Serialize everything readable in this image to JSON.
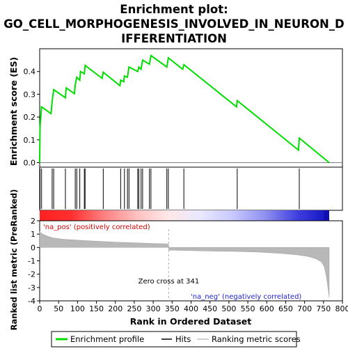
{
  "chart_data": {
    "type": "line",
    "title_line1": "Enrichment plot:",
    "title_line2": "GO_CELL_MORPHOGENESIS_INVOLVED_IN_NEURON_D",
    "title_line3": "IFFERENTIATION",
    "top_panel": {
      "ylabel": "Enrichment score (ES)",
      "ylim": [
        -0.02,
        0.5
      ],
      "yticks": [
        "0.0",
        "0.1",
        "0.2",
        "0.3",
        "0.4"
      ],
      "ytick_values": [
        0.0,
        0.1,
        0.2,
        0.3,
        0.4
      ],
      "series_name": "Enrichment profile",
      "line_color": "#00dd00",
      "points": [
        [
          0,
          0.0
        ],
        [
          1,
          0.155
        ],
        [
          5,
          0.245
        ],
        [
          30,
          0.215
        ],
        [
          33,
          0.268
        ],
        [
          37,
          0.32
        ],
        [
          68,
          0.285
        ],
        [
          70,
          0.328
        ],
        [
          92,
          0.303
        ],
        [
          94,
          0.342
        ],
        [
          98,
          0.375
        ],
        [
          106,
          0.362
        ],
        [
          108,
          0.4
        ],
        [
          118,
          0.39
        ],
        [
          120,
          0.427
        ],
        [
          165,
          0.37
        ],
        [
          168,
          0.397
        ],
        [
          212,
          0.338
        ],
        [
          214,
          0.362
        ],
        [
          222,
          0.355
        ],
        [
          224,
          0.38
        ],
        [
          232,
          0.375
        ],
        [
          236,
          0.42
        ],
        [
          259,
          0.4
        ],
        [
          262,
          0.42
        ],
        [
          268,
          0.41
        ],
        [
          272,
          0.45
        ],
        [
          290,
          0.432
        ],
        [
          294,
          0.47
        ],
        [
          336,
          0.42
        ],
        [
          340,
          0.46
        ],
        [
          378,
          0.41
        ],
        [
          381,
          0.43
        ],
        [
          520,
          0.245
        ],
        [
          522,
          0.272
        ],
        [
          684,
          0.055
        ],
        [
          686,
          0.108
        ],
        [
          765,
          0.0
        ]
      ]
    },
    "hits": {
      "series_name": "Hits",
      "positions": [
        1,
        5,
        33,
        37,
        68,
        94,
        98,
        106,
        118,
        120,
        168,
        214,
        224,
        232,
        236,
        259,
        262,
        268,
        272,
        290,
        294,
        336,
        340,
        381,
        522,
        686
      ]
    },
    "color_bar": {
      "stops": [
        "#ff2020",
        "#ff3030",
        "#ff8080",
        "#ffbfbf",
        "#ffe8e8",
        "#e8e8ff",
        "#c8c8ff",
        "#9090f0",
        "#4040e0",
        "#1010c0"
      ],
      "dark_end_start": 752
    },
    "bottom_panel": {
      "ylabel": "Ranked list metric (PreRanked)",
      "xlabel": "Rank in Ordered Dataset",
      "ylim": [
        -4,
        2
      ],
      "yticks": [
        "2",
        "1",
        "0",
        "-1",
        "-2",
        "-3",
        "-4"
      ],
      "ytick_values": [
        2,
        1,
        0,
        -1,
        -2,
        -3,
        -4
      ],
      "series_name": "Ranking metric scores",
      "metric_points": [
        [
          0,
          1.2
        ],
        [
          3,
          1.1
        ],
        [
          10,
          0.98
        ],
        [
          20,
          0.85
        ],
        [
          35,
          0.72
        ],
        [
          60,
          0.62
        ],
        [
          100,
          0.55
        ],
        [
          150,
          0.47
        ],
        [
          200,
          0.4
        ],
        [
          250,
          0.35
        ],
        [
          300,
          0.3
        ],
        [
          340,
          0.27
        ],
        [
          341,
          -0.2
        ],
        [
          380,
          -0.22
        ],
        [
          450,
          -0.27
        ],
        [
          520,
          -0.3
        ],
        [
          580,
          -0.35
        ],
        [
          640,
          -0.45
        ],
        [
          680,
          -0.55
        ],
        [
          710,
          -0.68
        ],
        [
          730,
          -0.85
        ],
        [
          745,
          -1.1
        ],
        [
          752,
          -1.45
        ],
        [
          757,
          -2.1
        ],
        [
          760,
          -2.7
        ],
        [
          763,
          -3.3
        ],
        [
          765,
          -3.75
        ]
      ],
      "pos_label": "'na_pos' (positively correlated)",
      "neg_label": "'na_neg' (negatively correlated)",
      "zero_cross_label": "Zero cross at 341",
      "zero_cross": 341
    },
    "xlim": [
      0,
      800
    ],
    "xticks": [
      "0",
      "50",
      "100",
      "150",
      "200",
      "250",
      "300",
      "350",
      "400",
      "450",
      "500",
      "550",
      "600",
      "650",
      "700",
      "750",
      "800"
    ],
    "xtick_values": [
      0,
      50,
      100,
      150,
      200,
      250,
      300,
      350,
      400,
      450,
      500,
      550,
      600,
      650,
      700,
      750,
      800
    ],
    "legend": {
      "placement": "bottom",
      "items": [
        "Enrichment profile",
        "Hits",
        "Ranking metric scores"
      ]
    }
  }
}
